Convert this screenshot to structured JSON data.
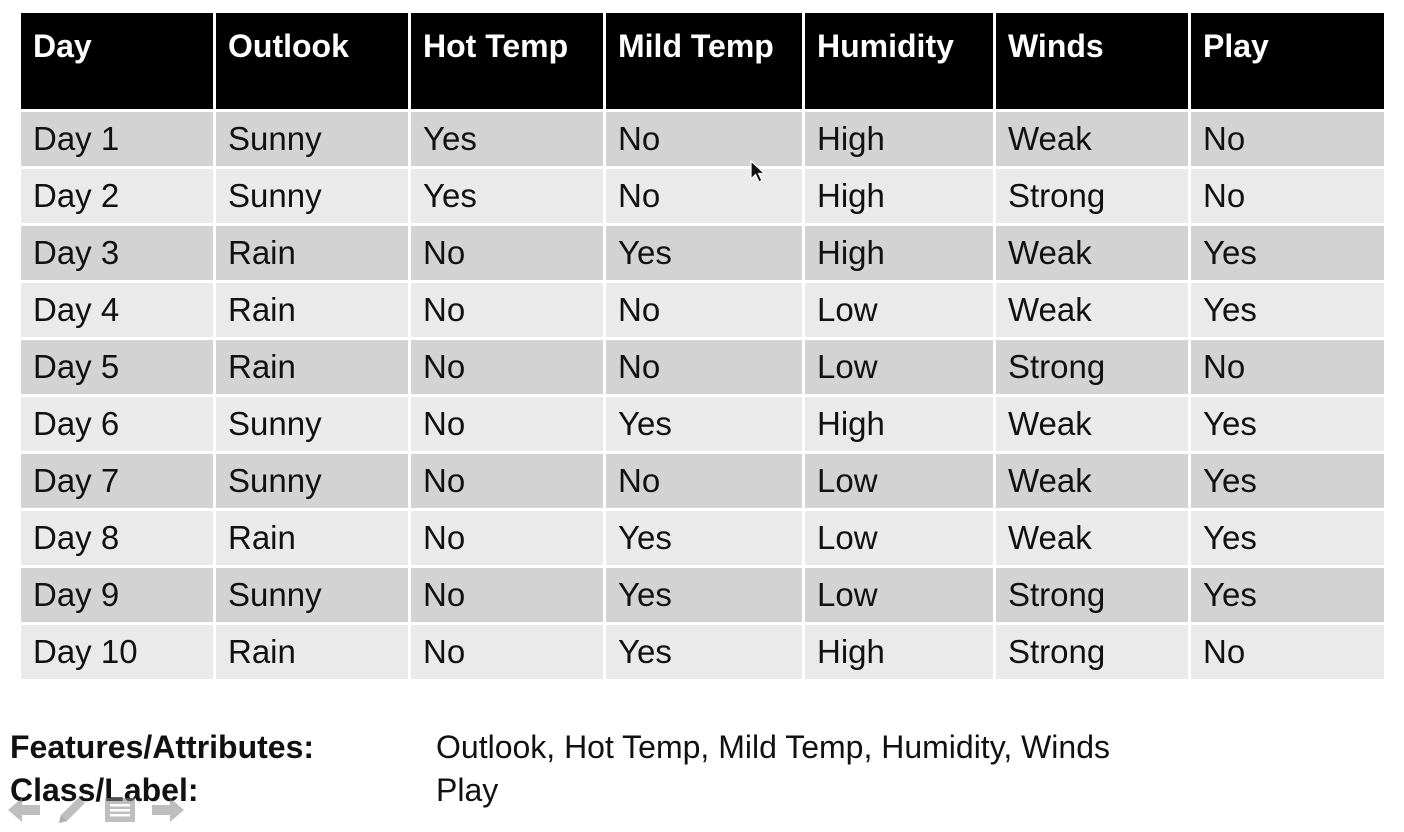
{
  "table": {
    "columns": [
      "Day",
      "Outlook",
      "Hot Temp",
      "Mild Temp",
      "Humidity",
      "Winds",
      "Play"
    ],
    "rows": [
      [
        "Day 1",
        "Sunny",
        "Yes",
        "No",
        "High",
        "Weak",
        "No"
      ],
      [
        "Day 2",
        "Sunny",
        "Yes",
        "No",
        "High",
        "Strong",
        "No"
      ],
      [
        "Day 3",
        "Rain",
        "No",
        "Yes",
        "High",
        "Weak",
        "Yes"
      ],
      [
        "Day 4",
        "Rain",
        "No",
        "No",
        "Low",
        "Weak",
        "Yes"
      ],
      [
        "Day 5",
        "Rain",
        "No",
        "No",
        "Low",
        "Strong",
        "No"
      ],
      [
        "Day 6",
        "Sunny",
        "No",
        "Yes",
        "High",
        "Weak",
        "Yes"
      ],
      [
        "Day 7",
        "Sunny",
        "No",
        "No",
        "Low",
        "Weak",
        "Yes"
      ],
      [
        "Day 8",
        "Rain",
        "No",
        "Yes",
        "Low",
        "Weak",
        "Yes"
      ],
      [
        "Day 9",
        "Sunny",
        "No",
        "Yes",
        "Low",
        "Strong",
        "Yes"
      ],
      [
        "Day 10",
        "Rain",
        "No",
        "Yes",
        "High",
        "Strong",
        "No"
      ]
    ]
  },
  "legend": {
    "features_label": "Features/Attributes:",
    "features_value": "Outlook, Hot Temp, Mild Temp, Humidity, Winds",
    "class_label": "Class/Label:",
    "class_value": "Play"
  },
  "toolbar": {
    "icons": [
      "arrow-left-icon",
      "pen-icon",
      "menu-icon",
      "arrow-right-icon"
    ]
  },
  "colors": {
    "header_bg": "#000000",
    "header_text": "#ffffff",
    "row_odd": "#d3d3d3",
    "row_even": "#eaeaea"
  }
}
